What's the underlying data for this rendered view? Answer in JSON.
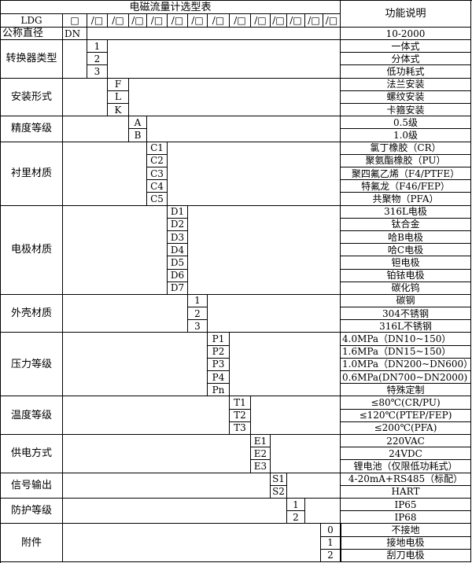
{
  "title": "电磁流量计选型表",
  "func_header": "功能说明",
  "model_prefix": "LDG",
  "slot_first": "□",
  "slot_rest": "/□",
  "slot_count": 14,
  "nominal": {
    "label": "公称直径",
    "code": "DN",
    "desc": "10-2000"
  },
  "groups": [
    {
      "label": "转换器类型",
      "col": 0,
      "options": [
        {
          "code": "1",
          "desc": "一体式"
        },
        {
          "code": "2",
          "desc": "分体式"
        },
        {
          "code": "3",
          "desc": "低功耗式"
        }
      ]
    },
    {
      "label": "安装形式",
      "col": 1,
      "options": [
        {
          "code": "F",
          "desc": "法兰安装"
        },
        {
          "code": "L",
          "desc": "螺纹安装"
        },
        {
          "code": "K",
          "desc": "卡箍安装"
        }
      ]
    },
    {
      "label": "精度等级",
      "col": 2,
      "options": [
        {
          "code": "A",
          "desc": "0.5级"
        },
        {
          "code": "B",
          "desc": "1.0级"
        }
      ]
    },
    {
      "label": "衬里材质",
      "col": 3,
      "options": [
        {
          "code": "C1",
          "desc": "氯丁橡胶（CR）"
        },
        {
          "code": "C2",
          "desc": "聚氨酯橡胶（PU）"
        },
        {
          "code": "C3",
          "desc": "聚四氟乙烯（F4/PTFE）"
        },
        {
          "code": "C4",
          "desc": "特氟龙（F46/FEP）"
        },
        {
          "code": "C5",
          "desc": "共聚物（PFA）"
        }
      ]
    },
    {
      "label": "电极材质",
      "col": 4,
      "options": [
        {
          "code": "D1",
          "desc": "316L电极"
        },
        {
          "code": "D2",
          "desc": "钛合金"
        },
        {
          "code": "D3",
          "desc": "哈B电极"
        },
        {
          "code": "D4",
          "desc": "哈C电极"
        },
        {
          "code": "D5",
          "desc": "钽电极"
        },
        {
          "code": "D6",
          "desc": "铂铱电极"
        },
        {
          "code": "D7",
          "desc": "碳化钨"
        }
      ]
    },
    {
      "label": "外壳材质",
      "col": 5,
      "options": [
        {
          "code": "1",
          "desc": "碳钢"
        },
        {
          "code": "2",
          "desc": "304不锈钢"
        },
        {
          "code": "3",
          "desc": "316L不锈钢"
        }
      ]
    },
    {
      "label": "压力等级",
      "col": 6,
      "options": [
        {
          "code": "P1",
          "desc": "4.0MPa（DN10~150）",
          "left": true
        },
        {
          "code": "P2",
          "desc": "1.6MPa（DN15~150）",
          "left": true
        },
        {
          "code": "P3",
          "desc": "1.0MPa（DN200~DN600）",
          "left": true
        },
        {
          "code": "P4",
          "desc": "0.6MPa(DN700~DN2000)",
          "left": true
        },
        {
          "code": "Pn",
          "desc": "特殊定制"
        }
      ]
    },
    {
      "label": "温度等级",
      "col": 7,
      "options": [
        {
          "code": "T1",
          "desc": "≤80℃(CR/PU)"
        },
        {
          "code": "T2",
          "desc": "≤120℃(PTEP/FEP)"
        },
        {
          "code": "T3",
          "desc": "≤200℃(PFA)"
        }
      ]
    },
    {
      "label": "供电方式",
      "col": 8,
      "options": [
        {
          "code": "E1",
          "desc": "220VAC"
        },
        {
          "code": "E2",
          "desc": "24VDC"
        },
        {
          "code": "E3",
          "desc": "锂电池（仅限低功耗式）"
        }
      ]
    },
    {
      "label": "信号输出",
      "col": 9,
      "options": [
        {
          "code": "S1",
          "desc": "4-20mA+RS485（标配）"
        },
        {
          "code": "S2",
          "desc": "HART"
        }
      ]
    },
    {
      "label": "防护等级",
      "col": 10,
      "options": [
        {
          "code": "1",
          "desc": "IP65"
        },
        {
          "code": "2",
          "desc": "IP68"
        }
      ]
    },
    {
      "label": "附件",
      "col": 11,
      "options": [
        {
          "code": "0",
          "desc": "不接地"
        },
        {
          "code": "1",
          "desc": "接地电极"
        },
        {
          "code": "2",
          "desc": "刮刀电极"
        }
      ]
    }
  ]
}
